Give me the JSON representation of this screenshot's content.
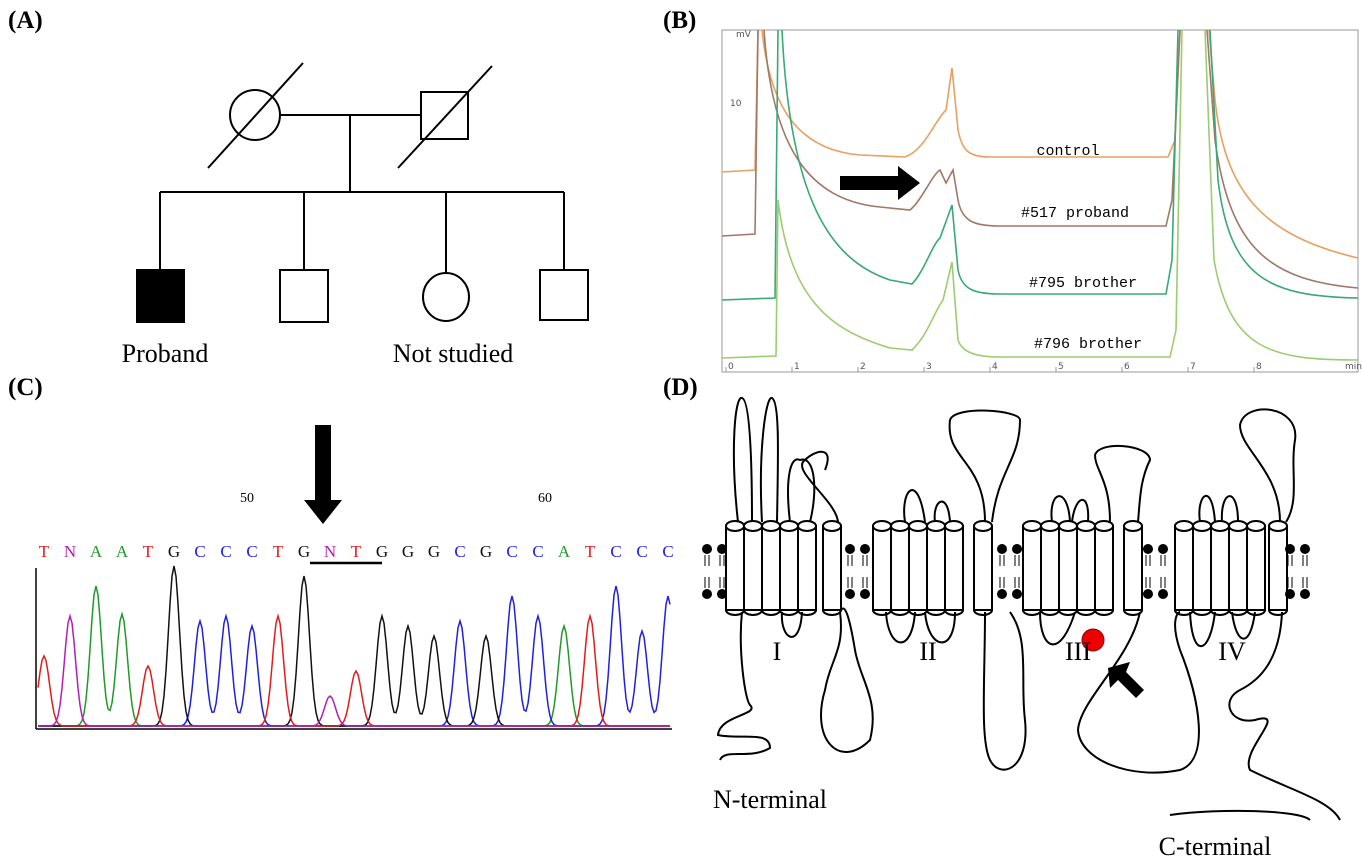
{
  "panels": [
    {
      "label": "(A)",
      "labels": [
        "Proband",
        "Not studied"
      ]
    },
    {
      "label": "(B)",
      "y_axis_label": "mV",
      "y_tick": 10,
      "x_ticks": [
        0,
        1,
        2,
        3,
        4,
        5,
        6,
        7,
        8
      ],
      "x_axis_label": "min",
      "traces": [
        "control",
        "#517 proband",
        "#795 brother",
        "#796 brother"
      ]
    },
    {
      "label": "(C)",
      "positions": [
        50,
        60
      ],
      "sequence": [
        "T",
        "N",
        "A",
        "A",
        "T",
        "G",
        "C",
        "C",
        "C",
        "T",
        "G",
        "N",
        "T",
        "G",
        "G",
        "G",
        "C",
        "G",
        "C",
        "C",
        "A",
        "T",
        "C",
        "C",
        "C"
      ],
      "base_colors": {
        "A": "#1f9a2a",
        "C": "#2020e0",
        "G": "#111111",
        "T": "#e01c1c",
        "N": "#b020b0"
      }
    },
    {
      "label": "(D)",
      "domains": [
        "I",
        "II",
        "III",
        "IV"
      ],
      "termini": [
        "N-terminal",
        "C-terminal"
      ]
    }
  ]
}
